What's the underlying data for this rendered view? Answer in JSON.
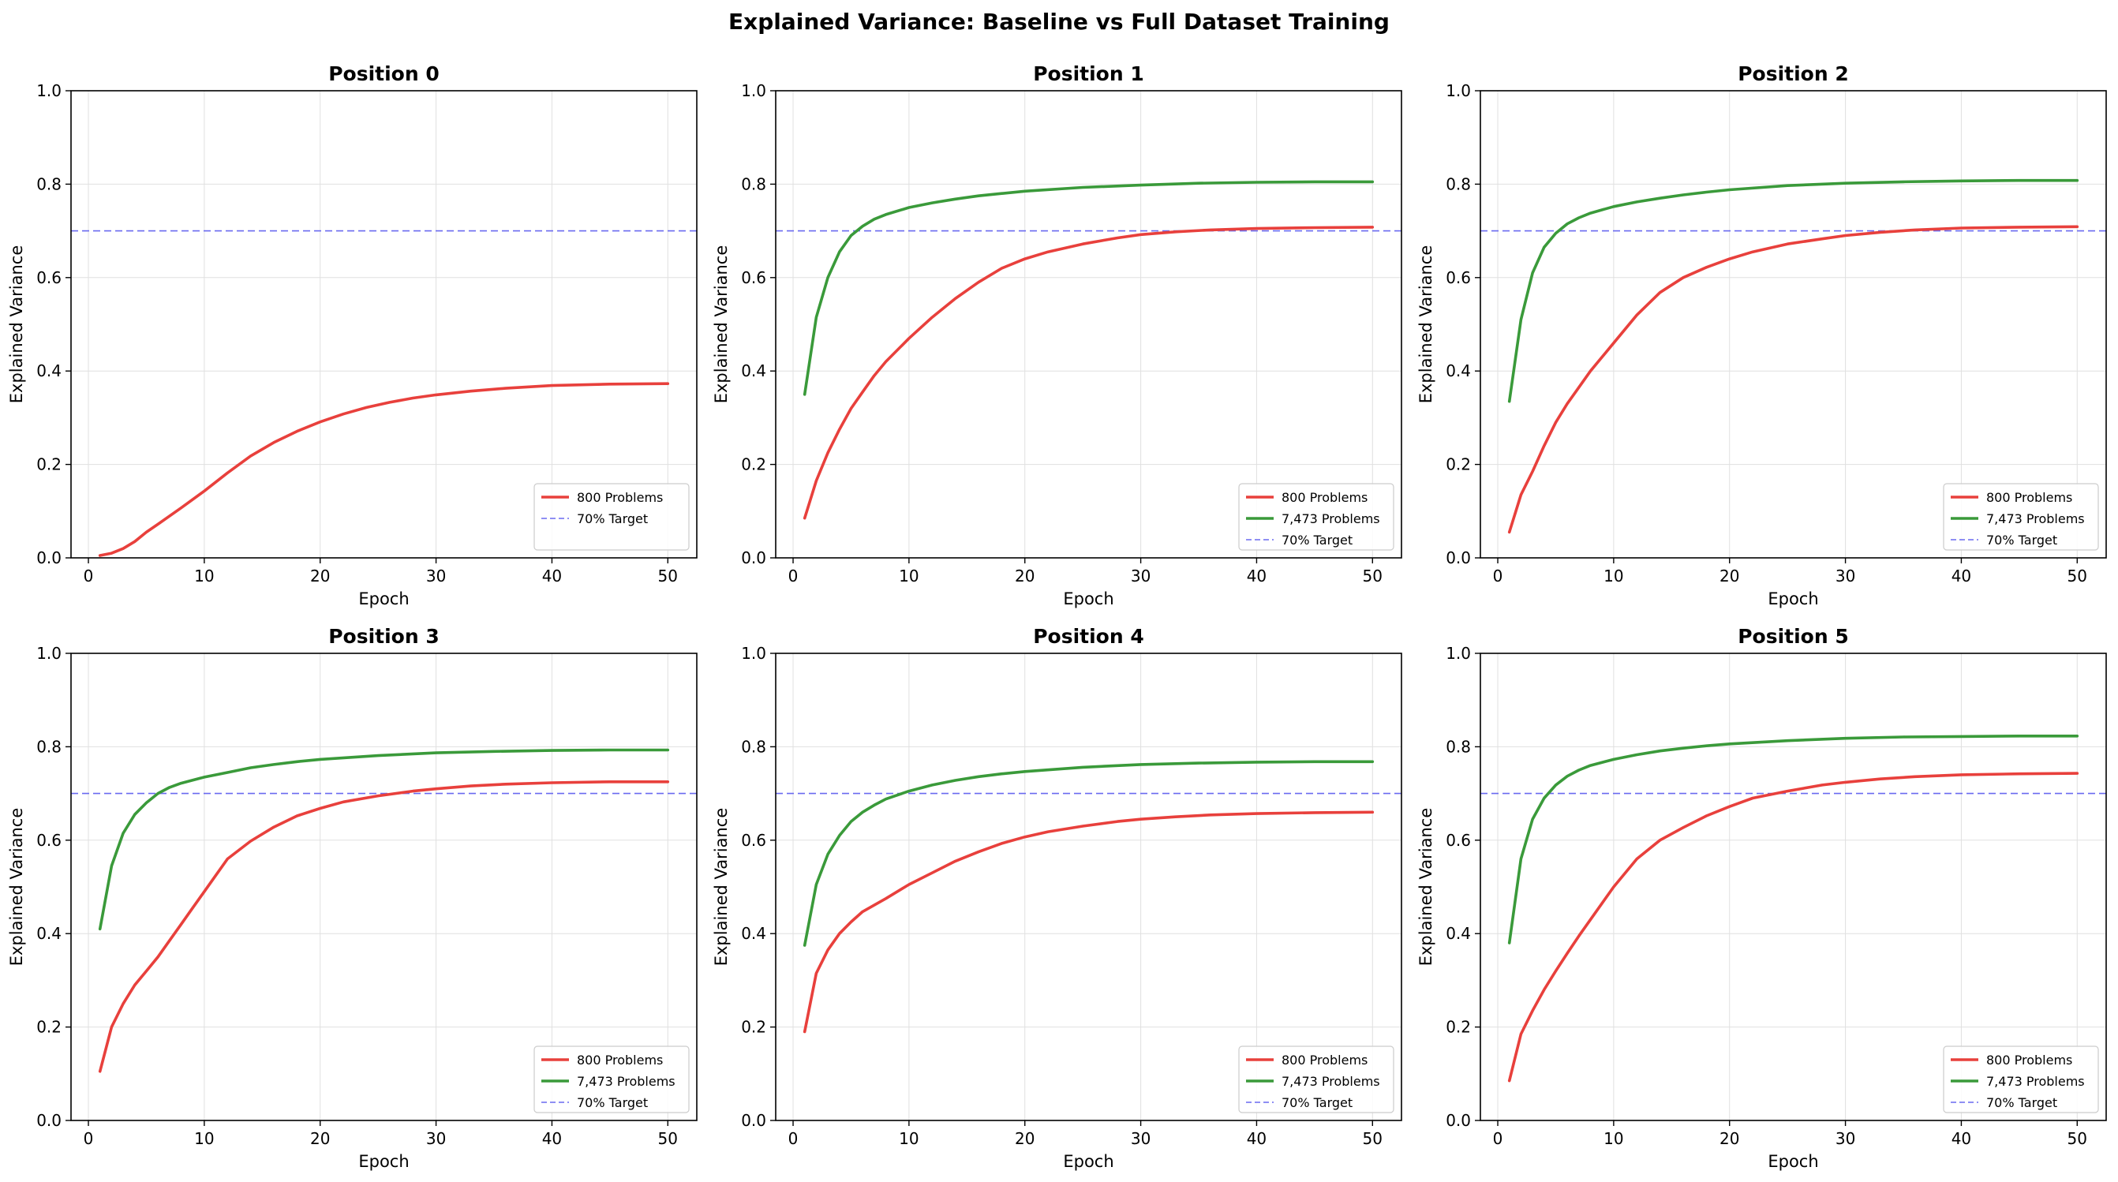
{
  "figure": {
    "title": "Explained Variance: Baseline vs Full Dataset Training"
  },
  "colors": {
    "series_800": "#e8403c",
    "series_7473": "#3a9a3a",
    "target": "#6a6af0",
    "grid": "#e0e0e0"
  },
  "chart_data": [
    {
      "type": "line",
      "title": "Position 0",
      "xlabel": "Epoch",
      "ylabel": "Explained Variance",
      "xlim": [
        -1.5,
        52.5
      ],
      "ylim": [
        0,
        1.0
      ],
      "xticks": [
        0,
        10,
        20,
        30,
        40,
        50
      ],
      "yticks": [
        "0.0",
        "0.2",
        "0.4",
        "0.6",
        "0.8",
        "1.0"
      ],
      "grid": true,
      "legend_position": "lower right",
      "target": {
        "name": "70% Target",
        "y": 0.7
      },
      "series": [
        {
          "name": "800 Problems",
          "x": [
            1,
            2,
            3,
            4,
            5,
            6,
            8,
            10,
            12,
            14,
            16,
            18,
            20,
            22,
            24,
            26,
            28,
            30,
            33,
            36,
            40,
            45,
            50
          ],
          "values": [
            0.005,
            0.01,
            0.02,
            0.035,
            0.055,
            0.072,
            0.107,
            0.143,
            0.182,
            0.218,
            0.247,
            0.271,
            0.291,
            0.308,
            0.322,
            0.333,
            0.342,
            0.349,
            0.357,
            0.363,
            0.369,
            0.372,
            0.373
          ]
        }
      ]
    },
    {
      "type": "line",
      "title": "Position 1",
      "xlabel": "Epoch",
      "ylabel": "Explained Variance",
      "xlim": [
        -1.5,
        52.5
      ],
      "ylim": [
        0,
        1.0
      ],
      "xticks": [
        0,
        10,
        20,
        30,
        40,
        50
      ],
      "yticks": [
        "0.0",
        "0.2",
        "0.4",
        "0.6",
        "0.8",
        "1.0"
      ],
      "grid": true,
      "legend_position": "lower right",
      "target": {
        "name": "70% Target",
        "y": 0.7
      },
      "series": [
        {
          "name": "800 Problems",
          "x": [
            1,
            2,
            3,
            4,
            5,
            6,
            7,
            8,
            10,
            12,
            14,
            16,
            18,
            20,
            22,
            25,
            28,
            30,
            33,
            36,
            40,
            45,
            50
          ],
          "values": [
            0.085,
            0.165,
            0.225,
            0.275,
            0.32,
            0.355,
            0.39,
            0.42,
            0.47,
            0.515,
            0.555,
            0.59,
            0.62,
            0.64,
            0.655,
            0.672,
            0.685,
            0.692,
            0.698,
            0.702,
            0.705,
            0.707,
            0.708
          ]
        },
        {
          "name": "7,473 Problems",
          "x": [
            1,
            2,
            3,
            4,
            5,
            6,
            7,
            8,
            10,
            12,
            14,
            16,
            18,
            20,
            25,
            30,
            35,
            40,
            45,
            50
          ],
          "values": [
            0.35,
            0.515,
            0.6,
            0.655,
            0.69,
            0.71,
            0.725,
            0.735,
            0.75,
            0.76,
            0.768,
            0.775,
            0.78,
            0.785,
            0.793,
            0.798,
            0.802,
            0.804,
            0.805,
            0.805
          ]
        }
      ]
    },
    {
      "type": "line",
      "title": "Position 2",
      "xlabel": "Epoch",
      "ylabel": "Explained Variance",
      "xlim": [
        -1.5,
        52.5
      ],
      "ylim": [
        0,
        1.0
      ],
      "xticks": [
        0,
        10,
        20,
        30,
        40,
        50
      ],
      "yticks": [
        "0.0",
        "0.2",
        "0.4",
        "0.6",
        "0.8",
        "1.0"
      ],
      "grid": true,
      "legend_position": "lower right",
      "target": {
        "name": "70% Target",
        "y": 0.7
      },
      "series": [
        {
          "name": "800 Problems",
          "x": [
            1,
            2,
            3,
            4,
            5,
            6,
            7,
            8,
            10,
            12,
            14,
            16,
            18,
            20,
            22,
            25,
            28,
            30,
            33,
            36,
            40,
            45,
            50
          ],
          "values": [
            0.055,
            0.135,
            0.185,
            0.24,
            0.29,
            0.33,
            0.365,
            0.4,
            0.46,
            0.52,
            0.568,
            0.6,
            0.622,
            0.64,
            0.655,
            0.672,
            0.683,
            0.69,
            0.697,
            0.702,
            0.706,
            0.708,
            0.709
          ]
        },
        {
          "name": "7,473 Problems",
          "x": [
            1,
            2,
            3,
            4,
            5,
            6,
            7,
            8,
            10,
            12,
            14,
            16,
            18,
            20,
            25,
            30,
            35,
            40,
            45,
            50
          ],
          "values": [
            0.335,
            0.51,
            0.61,
            0.665,
            0.695,
            0.715,
            0.728,
            0.738,
            0.752,
            0.762,
            0.77,
            0.777,
            0.783,
            0.788,
            0.797,
            0.802,
            0.805,
            0.807,
            0.808,
            0.808
          ]
        }
      ]
    },
    {
      "type": "line",
      "title": "Position 3",
      "xlabel": "Epoch",
      "ylabel": "Explained Variance",
      "xlim": [
        -1.5,
        52.5
      ],
      "ylim": [
        0,
        1.0
      ],
      "xticks": [
        0,
        10,
        20,
        30,
        40,
        50
      ],
      "yticks": [
        "0.0",
        "0.2",
        "0.4",
        "0.6",
        "0.8",
        "1.0"
      ],
      "grid": true,
      "legend_position": "lower right",
      "target": {
        "name": "70% Target",
        "y": 0.7
      },
      "series": [
        {
          "name": "800 Problems",
          "x": [
            1,
            2,
            3,
            4,
            5,
            6,
            7,
            8,
            9,
            10,
            11,
            12,
            14,
            16,
            18,
            20,
            22,
            25,
            28,
            30,
            33,
            36,
            40,
            45,
            50
          ],
          "values": [
            0.105,
            0.2,
            0.25,
            0.29,
            0.32,
            0.35,
            0.385,
            0.42,
            0.455,
            0.49,
            0.525,
            0.56,
            0.598,
            0.628,
            0.652,
            0.668,
            0.682,
            0.695,
            0.705,
            0.71,
            0.716,
            0.72,
            0.723,
            0.725,
            0.725
          ]
        },
        {
          "name": "7,473 Problems",
          "x": [
            1,
            2,
            3,
            4,
            5,
            6,
            7,
            8,
            10,
            12,
            14,
            16,
            18,
            20,
            25,
            30,
            35,
            40,
            45,
            50
          ],
          "values": [
            0.41,
            0.545,
            0.615,
            0.655,
            0.68,
            0.7,
            0.713,
            0.722,
            0.735,
            0.745,
            0.755,
            0.762,
            0.768,
            0.773,
            0.781,
            0.787,
            0.79,
            0.792,
            0.793,
            0.793
          ]
        }
      ]
    },
    {
      "type": "line",
      "title": "Position 4",
      "xlabel": "Epoch",
      "ylabel": "Explained Variance",
      "xlim": [
        -1.5,
        52.5
      ],
      "ylim": [
        0,
        1.0
      ],
      "xticks": [
        0,
        10,
        20,
        30,
        40,
        50
      ],
      "yticks": [
        "0.0",
        "0.2",
        "0.4",
        "0.6",
        "0.8",
        "1.0"
      ],
      "grid": true,
      "legend_position": "lower right",
      "target": {
        "name": "70% Target",
        "y": 0.7
      },
      "series": [
        {
          "name": "800 Problems",
          "x": [
            1,
            2,
            3,
            4,
            5,
            6,
            8,
            10,
            12,
            14,
            16,
            18,
            20,
            22,
            25,
            28,
            30,
            33,
            36,
            40,
            45,
            50
          ],
          "values": [
            0.19,
            0.315,
            0.365,
            0.4,
            0.425,
            0.447,
            0.475,
            0.505,
            0.53,
            0.555,
            0.575,
            0.593,
            0.607,
            0.618,
            0.63,
            0.64,
            0.645,
            0.65,
            0.654,
            0.657,
            0.659,
            0.66
          ]
        },
        {
          "name": "7,473 Problems",
          "x": [
            1,
            2,
            3,
            4,
            5,
            6,
            7,
            8,
            10,
            12,
            14,
            16,
            18,
            20,
            25,
            30,
            35,
            40,
            45,
            50
          ],
          "values": [
            0.375,
            0.505,
            0.57,
            0.61,
            0.64,
            0.66,
            0.675,
            0.688,
            0.705,
            0.718,
            0.728,
            0.736,
            0.742,
            0.747,
            0.756,
            0.762,
            0.765,
            0.767,
            0.768,
            0.768
          ]
        }
      ]
    },
    {
      "type": "line",
      "title": "Position 5",
      "xlabel": "Epoch",
      "ylabel": "Explained Variance",
      "xlim": [
        -1.5,
        52.5
      ],
      "ylim": [
        0,
        1.0
      ],
      "xticks": [
        0,
        10,
        20,
        30,
        40,
        50
      ],
      "yticks": [
        "0.0",
        "0.2",
        "0.4",
        "0.6",
        "0.8",
        "1.0"
      ],
      "grid": true,
      "legend_position": "lower right",
      "target": {
        "name": "70% Target",
        "y": 0.7
      },
      "series": [
        {
          "name": "800 Problems",
          "x": [
            1,
            2,
            3,
            4,
            5,
            6,
            7,
            8,
            10,
            12,
            14,
            16,
            18,
            20,
            22,
            25,
            28,
            30,
            33,
            36,
            40,
            45,
            50
          ],
          "values": [
            0.085,
            0.185,
            0.235,
            0.28,
            0.32,
            0.358,
            0.395,
            0.43,
            0.5,
            0.56,
            0.6,
            0.627,
            0.652,
            0.672,
            0.69,
            0.705,
            0.718,
            0.724,
            0.731,
            0.736,
            0.74,
            0.742,
            0.743
          ]
        },
        {
          "name": "7,473 Problems",
          "x": [
            1,
            2,
            3,
            4,
            5,
            6,
            7,
            8,
            10,
            12,
            14,
            16,
            18,
            20,
            25,
            30,
            35,
            40,
            45,
            50
          ],
          "values": [
            0.38,
            0.56,
            0.645,
            0.69,
            0.718,
            0.737,
            0.75,
            0.76,
            0.773,
            0.783,
            0.791,
            0.797,
            0.802,
            0.806,
            0.813,
            0.818,
            0.821,
            0.822,
            0.823,
            0.823
          ]
        }
      ]
    }
  ]
}
